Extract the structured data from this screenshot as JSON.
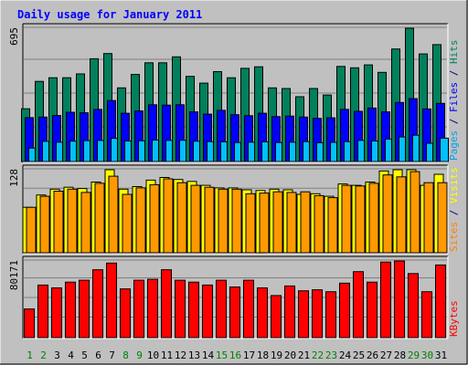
{
  "chart_data": {
    "type": "bar",
    "title": "Daily usage for January 2011",
    "categories": [
      "1",
      "2",
      "3",
      "4",
      "5",
      "6",
      "7",
      "8",
      "9",
      "10",
      "11",
      "12",
      "13",
      "14",
      "15",
      "16",
      "17",
      "18",
      "19",
      "20",
      "21",
      "22",
      "23",
      "24",
      "25",
      "26",
      "27",
      "28",
      "29",
      "30",
      "31"
    ],
    "weekend_color": "#008000",
    "weekday_color": "#000000",
    "weekend_days": [
      1,
      2,
      8,
      9,
      15,
      16,
      22,
      23,
      29,
      30
    ],
    "panels": [
      {
        "key": "hits",
        "max_label": "695",
        "max": 695,
        "legend": [
          {
            "text": "Pages",
            "color": "#00a0f0"
          },
          {
            "text": " / ",
            "color": "#000080"
          },
          {
            "text": "Files",
            "color": "#0000ff"
          },
          {
            "text": " / ",
            "color": "#000080"
          },
          {
            "text": "Hits",
            "color": "#008060"
          }
        ],
        "series": [
          {
            "name": "Hits",
            "color": "#00805c",
            "values": [
              275,
              418,
              437,
              437,
              457,
              536,
              563,
              384,
              454,
              515,
              515,
              546,
              444,
              409,
              469,
              437,
              486,
              494,
              384,
              381,
              338,
              381,
              347,
              496,
              489,
              504,
              465,
              587,
              695,
              561,
              610
            ]
          },
          {
            "name": "Files",
            "color": "#0000ff",
            "values": [
              229,
              232,
              240,
              257,
              254,
              272,
              318,
              252,
              264,
              296,
              294,
              296,
              259,
              247,
              267,
              244,
              239,
              252,
              234,
              237,
              232,
              225,
              228,
              272,
              262,
              279,
              259,
              308,
              328,
              274,
              303
            ]
          },
          {
            "name": "Pages",
            "color": "#00c0ff",
            "values": [
              70,
              105,
              101,
              106,
              109,
              110,
              121,
              107,
              108,
              112,
              110,
              111,
              106,
              104,
              103,
              99,
              101,
              103,
              99,
              101,
              104,
              98,
              100,
              104,
              110,
              107,
              117,
              128,
              137,
              95,
              122
            ]
          }
        ]
      },
      {
        "key": "visits",
        "max_label": "128",
        "max": 128,
        "legend": [
          {
            "text": "Sites",
            "color": "#ff8000"
          },
          {
            "text": " / ",
            "color": "#000080"
          },
          {
            "text": "Visits",
            "color": "#ffff00"
          }
        ],
        "series": [
          {
            "name": "Visits",
            "color": "#ffff00",
            "values": [
              70,
              89,
              98,
              101,
              99,
              109,
              128,
              98,
              102,
              112,
              116,
              113,
              110,
              104,
              100,
              100,
              97,
              96,
              98,
              97,
              90,
              91,
              87,
              106,
              104,
              109,
              126,
              128,
              128,
              104,
              121
            ]
          },
          {
            "name": "Sites",
            "color": "#ff9900",
            "values": [
              70,
              87,
              95,
              98,
              93,
              107,
              118,
              90,
              100,
              105,
              114,
              108,
              104,
              101,
              98,
              98,
              91,
              92,
              94,
              93,
              94,
              88,
              85,
              104,
              103,
              107,
              120,
              117,
              125,
              108,
              108
            ]
          }
        ]
      },
      {
        "key": "kbytes",
        "max_label": "80171",
        "max": 80171,
        "legend": [
          {
            "text": "KBytes",
            "color": "#ff0000"
          }
        ],
        "series": [
          {
            "name": "KBytes",
            "color": "#ff0000",
            "values": [
              30000,
              55000,
              52000,
              58000,
              60000,
              71000,
              78000,
              51000,
              60000,
              61000,
              71000,
              60000,
              58000,
              55000,
              60000,
              53000,
              60000,
              52000,
              44000,
              54000,
              49000,
              50000,
              48000,
              57000,
              69000,
              58000,
              79000,
              80171,
              67000,
              48000,
              76000
            ]
          }
        ]
      }
    ]
  }
}
